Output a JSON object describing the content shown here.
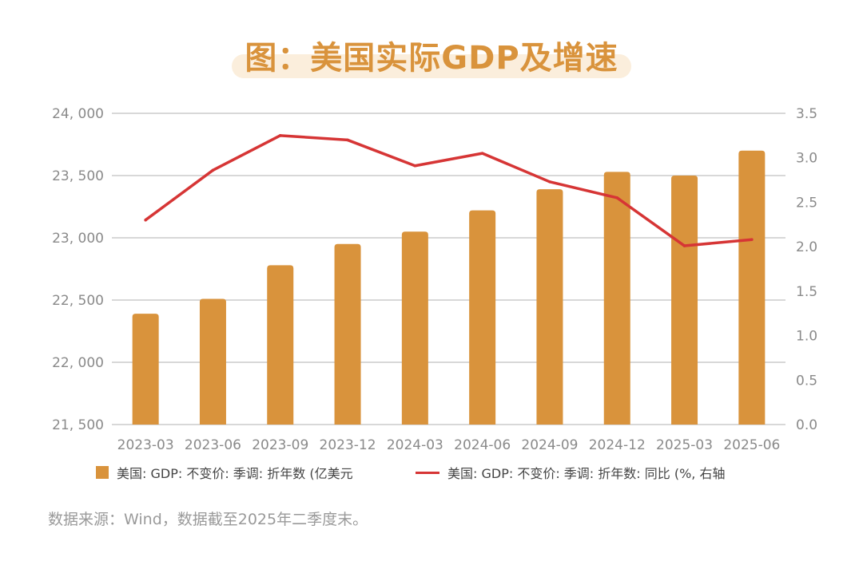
{
  "title": "图：美国实际GDP及增速",
  "source": "数据来源：Wind，数据截至2025年二季度末。",
  "colors": {
    "bar": "#d9933c",
    "line": "#d63535",
    "grid": "#cccccc",
    "axis_text": "#8a8a8a"
  },
  "chart_data": {
    "type": "bar",
    "categories": [
      "2023-03",
      "2023-06",
      "2023-09",
      "2023-12",
      "2024-03",
      "2024-06",
      "2024-09",
      "2024-12",
      "2025-03",
      "2025-06"
    ],
    "series": [
      {
        "name": "美国: GDP: 不变价: 季调: 折年数 (亿美元",
        "type": "bar",
        "axis": "left",
        "values": [
          22390,
          22510,
          22780,
          22950,
          23050,
          23220,
          23390,
          23530,
          23500,
          23700
        ]
      },
      {
        "name": "美国: GDP: 不变价: 季调: 折年数: 同比 (%, 右轴",
        "type": "line",
        "axis": "right",
        "values": [
          2.3,
          2.86,
          3.25,
          3.2,
          2.91,
          3.05,
          2.73,
          2.55,
          2.01,
          2.08
        ]
      }
    ],
    "left_axis": {
      "ylim": [
        21500,
        24000
      ],
      "ticks": [
        "21, 500",
        "22, 000",
        "22, 500",
        "23, 000",
        "23, 500",
        "24, 000"
      ]
    },
    "right_axis": {
      "ylim": [
        0,
        3.5
      ],
      "ticks": [
        "0.0",
        "0.5",
        "1.0",
        "1.5",
        "2.0",
        "2.5",
        "3.0",
        "3.5"
      ]
    },
    "grid": true,
    "legend": "bottom"
  }
}
